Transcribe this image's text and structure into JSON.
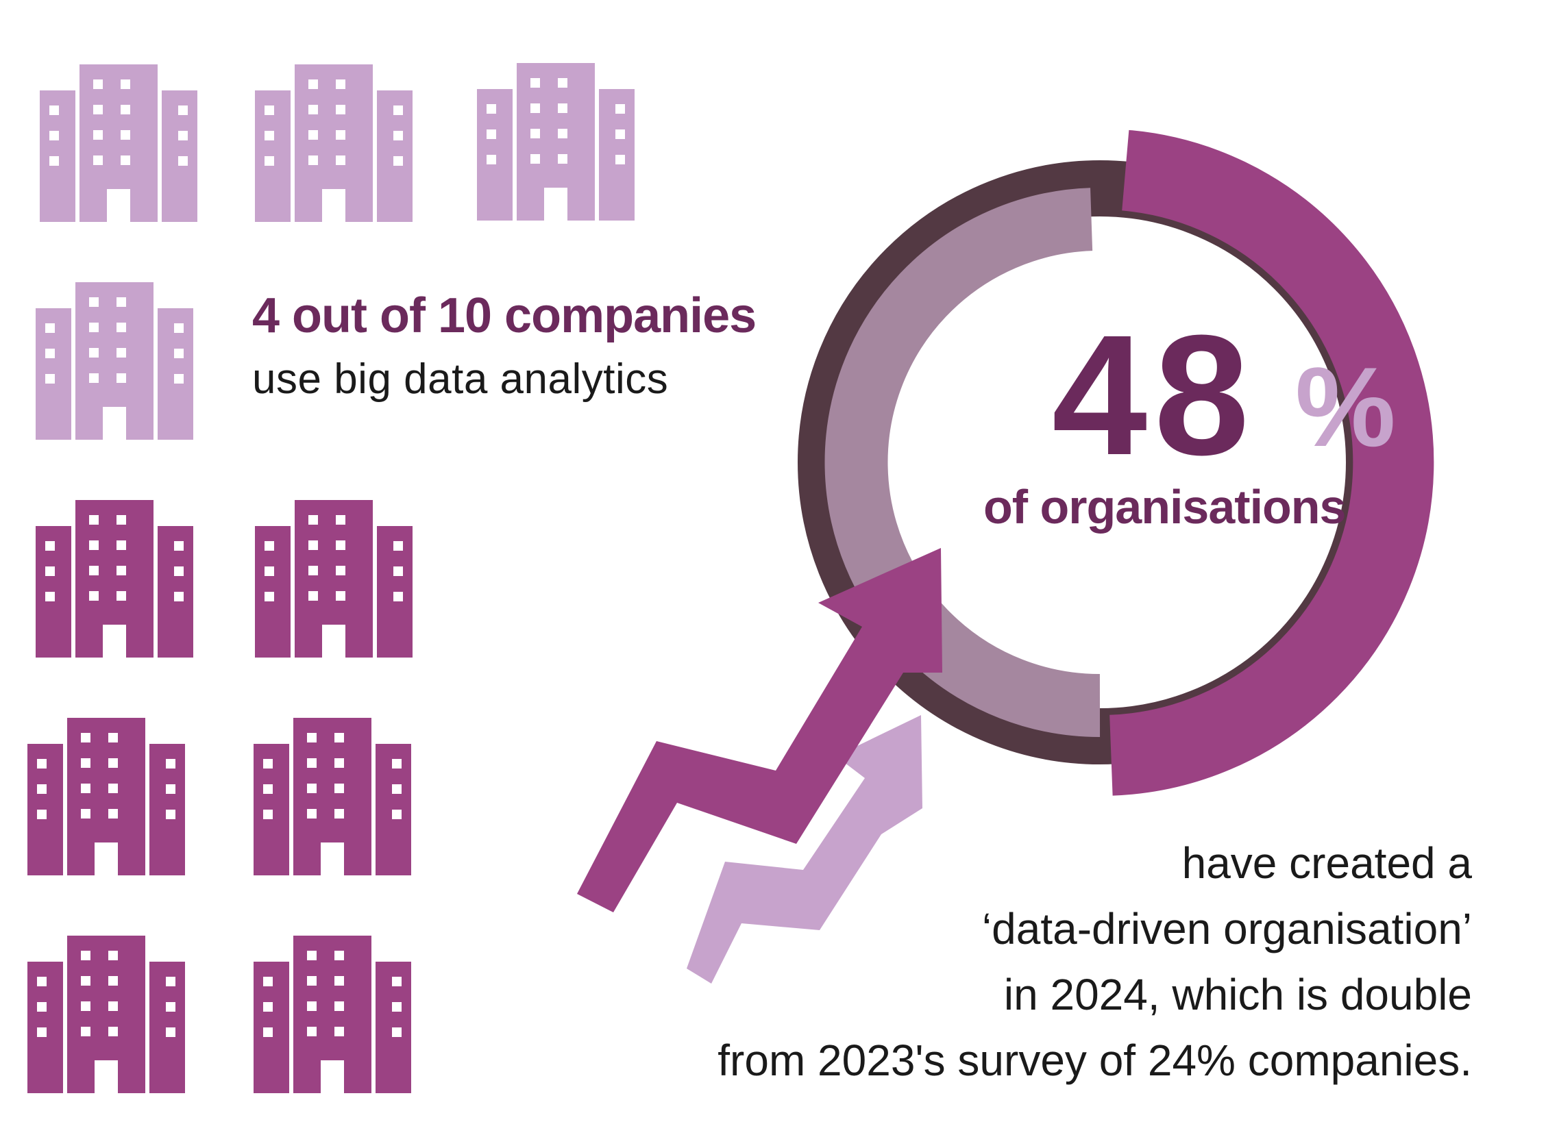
{
  "colors": {
    "building_light": "#c7a3cc",
    "building_dark": "#9b4283",
    "ring_light": "#a5879f",
    "ring_accent": "#9b4283",
    "ring_shadow": "#533943",
    "text_primary": "#6b2a5c",
    "text_light": "#c7a3cc",
    "text_body": "#1a1a1a",
    "arrow_dark": "#9b4283",
    "arrow_light": "#c7a3cc"
  },
  "icons": {
    "building": "building-icon",
    "arrow_main": "trend-arrow-icon",
    "arrow_secondary": "trend-arrow-small-icon"
  },
  "companies_stat": {
    "headline": "4 out of 10 companies",
    "subline": "use big data analytics",
    "highlighted": 4,
    "total": 10
  },
  "organisations_stat": {
    "number": "48",
    "percent_sign": "%",
    "label": "of organisations",
    "ring_fraction": 0.48,
    "description_lines": [
      "have created a",
      "‘data-driven organisation’",
      "in 2024, which is double",
      "from 2023's survey of 24% companies."
    ]
  }
}
